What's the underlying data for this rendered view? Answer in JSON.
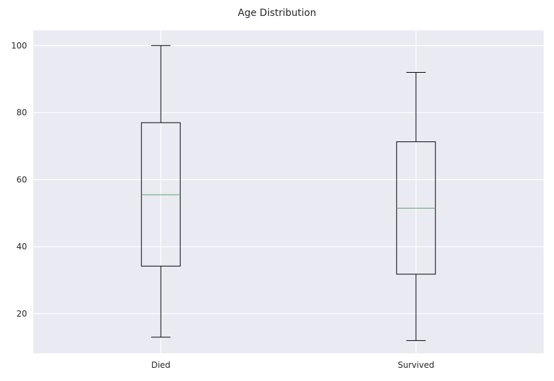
{
  "chart_data": {
    "type": "box",
    "title": "Age Distribution",
    "xlabel": "",
    "ylabel": "",
    "categories": [
      "Died",
      "Survived"
    ],
    "boxes": [
      {
        "name": "Died",
        "min": 13,
        "q1": 34.2,
        "median": 55.5,
        "q3": 77,
        "max": 100
      },
      {
        "name": "Survived",
        "min": 12,
        "q1": 31.8,
        "median": 51.5,
        "q3": 71.3,
        "max": 92
      }
    ],
    "ylim": [
      8.2,
      104.5
    ],
    "yticks": [
      20,
      40,
      60,
      80,
      100
    ],
    "grid": true,
    "colors": {
      "background": "#eaeaf2",
      "grid": "#ffffff",
      "box": "#000000",
      "median": "#55a868",
      "text": "#262626"
    }
  }
}
